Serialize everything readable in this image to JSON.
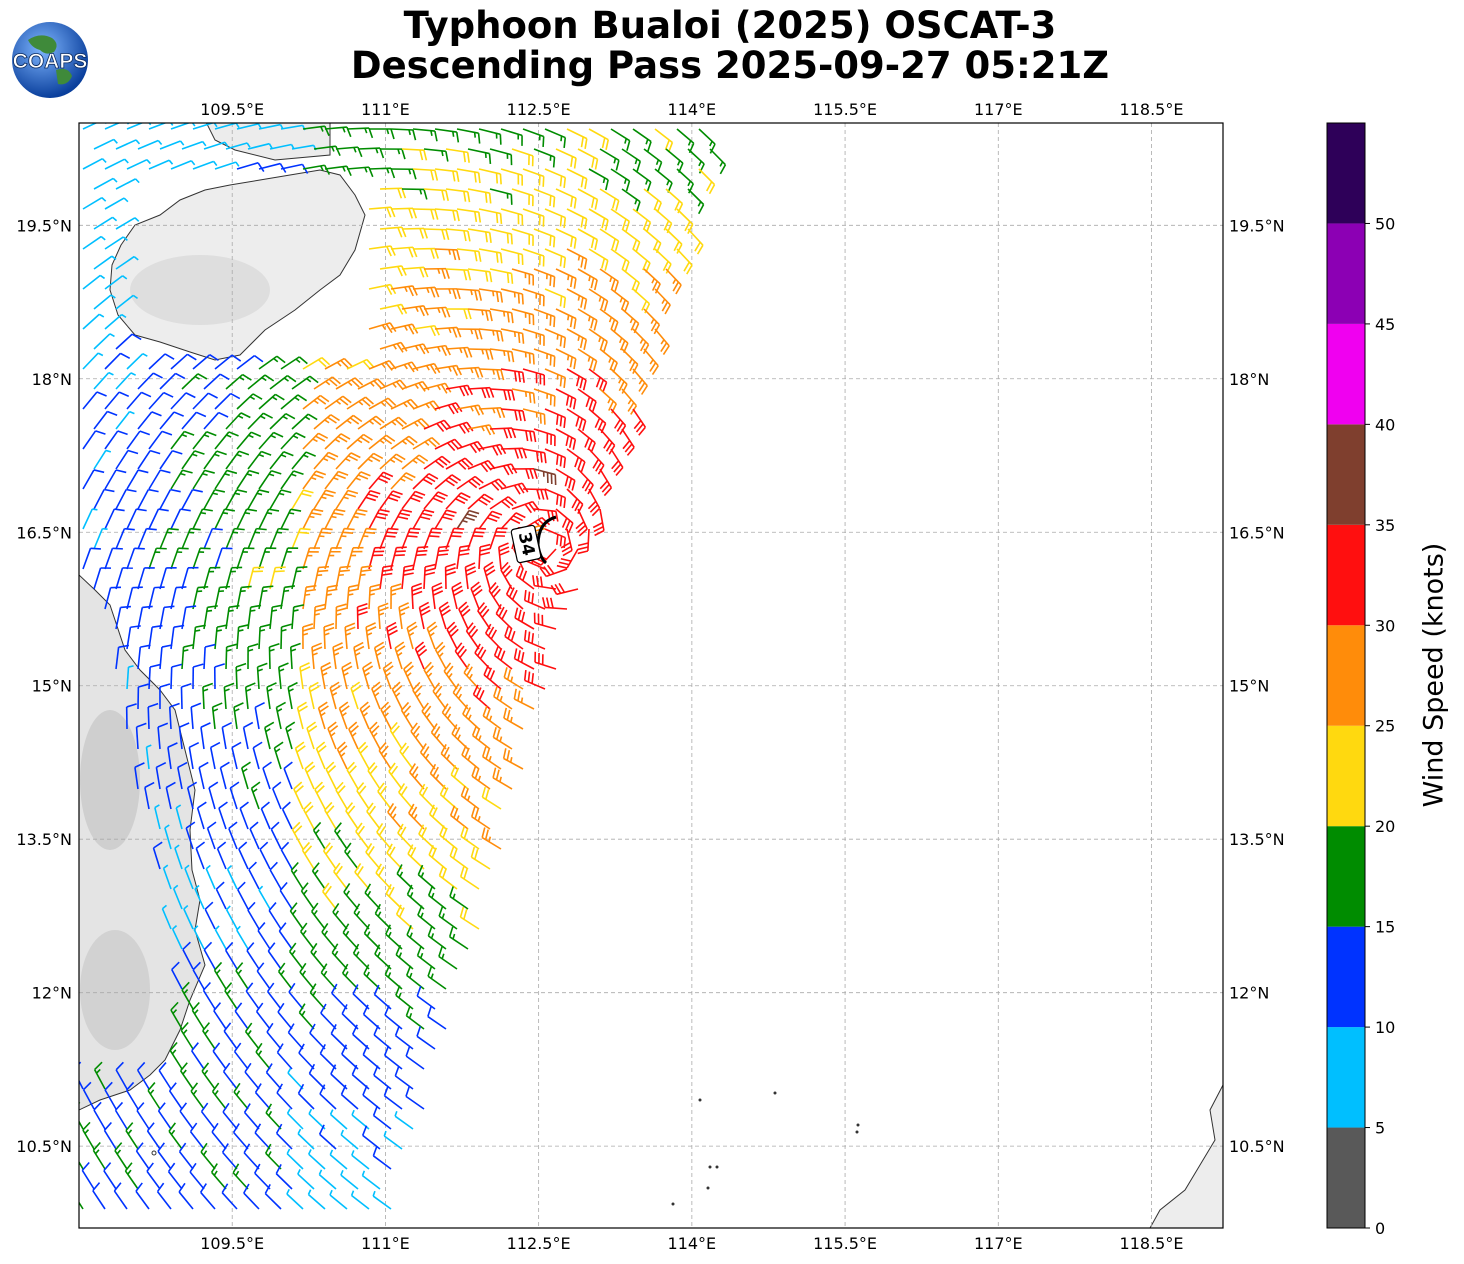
{
  "title": {
    "line1": "Typhoon Bualoi (2025) OSCAT-3",
    "line2": "Descending Pass 2025-09-27 05:21Z"
  },
  "logo": {
    "text": "COAPS",
    "icon": "globe-logo"
  },
  "map": {
    "lon_ticks": [
      "109.5°E",
      "111°E",
      "112.5°E",
      "114°E",
      "115.5°E",
      "117°E",
      "118.5°E"
    ],
    "lat_ticks": [
      "19.5°N",
      "18°N",
      "16.5°N",
      "15°N",
      "13.5°N",
      "12°N",
      "10.5°N"
    ],
    "lon_range": [
      108.0,
      119.2
    ],
    "lat_range": [
      9.7,
      20.5
    ],
    "storm_label": "34",
    "gridlines": true
  },
  "colorbar": {
    "label": "Wind Speed (knots)",
    "ticks": [
      "0",
      "5",
      "10",
      "15",
      "20",
      "25",
      "30",
      "35",
      "40",
      "45",
      "50"
    ],
    "bins": [
      {
        "from": 0,
        "to": 5,
        "color": "#595959"
      },
      {
        "from": 5,
        "to": 10,
        "color": "#00bfff"
      },
      {
        "from": 10,
        "to": 15,
        "color": "#0033ff"
      },
      {
        "from": 15,
        "to": 20,
        "color": "#008c00"
      },
      {
        "from": 20,
        "to": 25,
        "color": "#ffd90f"
      },
      {
        "from": 25,
        "to": 30,
        "color": "#ff8c0a"
      },
      {
        "from": 30,
        "to": 35,
        "color": "#ff0f0f"
      },
      {
        "from": 35,
        "to": 40,
        "color": "#7f3f2e"
      },
      {
        "from": 40,
        "to": 45,
        "color": "#f000f0"
      },
      {
        "from": 45,
        "to": 50,
        "color": "#8c00b4"
      },
      {
        "from": 50,
        "to": 55,
        "color": "#2e0059"
      }
    ]
  }
}
